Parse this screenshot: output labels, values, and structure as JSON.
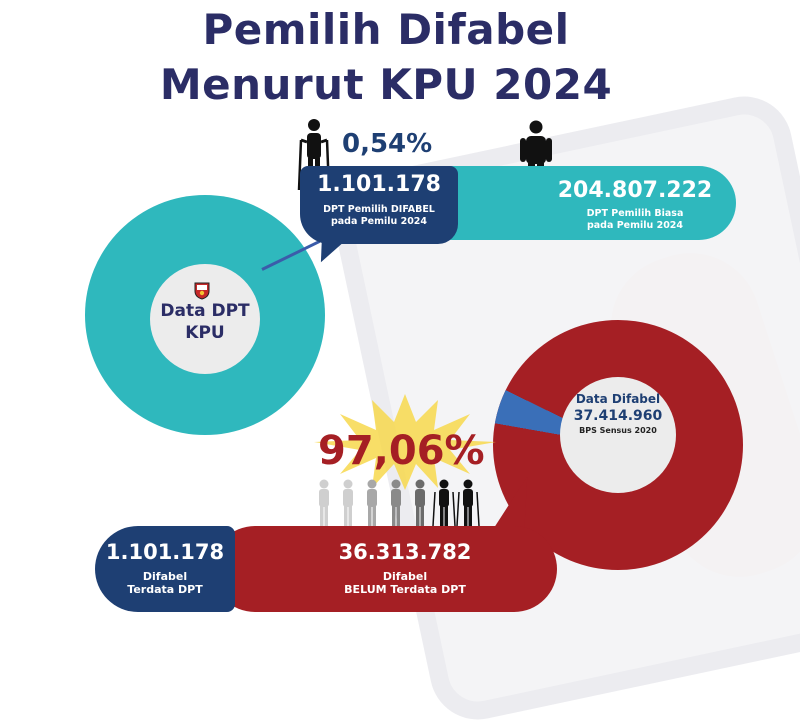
{
  "title": {
    "line1": "Pemilih Difabel",
    "line2": "Menurut KPU 2024"
  },
  "top_section": {
    "percentage": "0,54%",
    "difabel_count": "1.101.178",
    "difabel_label_line1": "DPT Pemilih DIFABEL",
    "difabel_label_line2": "pada Pemilu 2024",
    "regular_count": "204.807.222",
    "regular_label_line1": "DPT Pemilih Biasa",
    "regular_label_line2": "pada Pemilu 2024",
    "icons": [
      "person-with-crutches-icon",
      "person-standing-icon"
    ]
  },
  "left_circle": {
    "label_line1": "Data DPT",
    "label_line2": "KPU",
    "logo": "kpu-logo"
  },
  "right_circle": {
    "title": "Data Difabel",
    "count": "37.414.960",
    "source": "BPS Sensus 2020"
  },
  "highlight": {
    "percentage": "97,06%"
  },
  "bottom_section": {
    "registered_count": "1.101.178",
    "registered_line1": "Difabel",
    "registered_line2": "Terdata DPT",
    "unregistered_count": "36.313.782",
    "unregistered_line1": "Difabel",
    "unregistered_line2": "BELUM Terdata DPT"
  },
  "colors": {
    "navy": "#1e3f73",
    "teal": "#2fb8bd",
    "red": "#a51f24",
    "title": "#2b2d66",
    "burst": "#f7d84c"
  }
}
